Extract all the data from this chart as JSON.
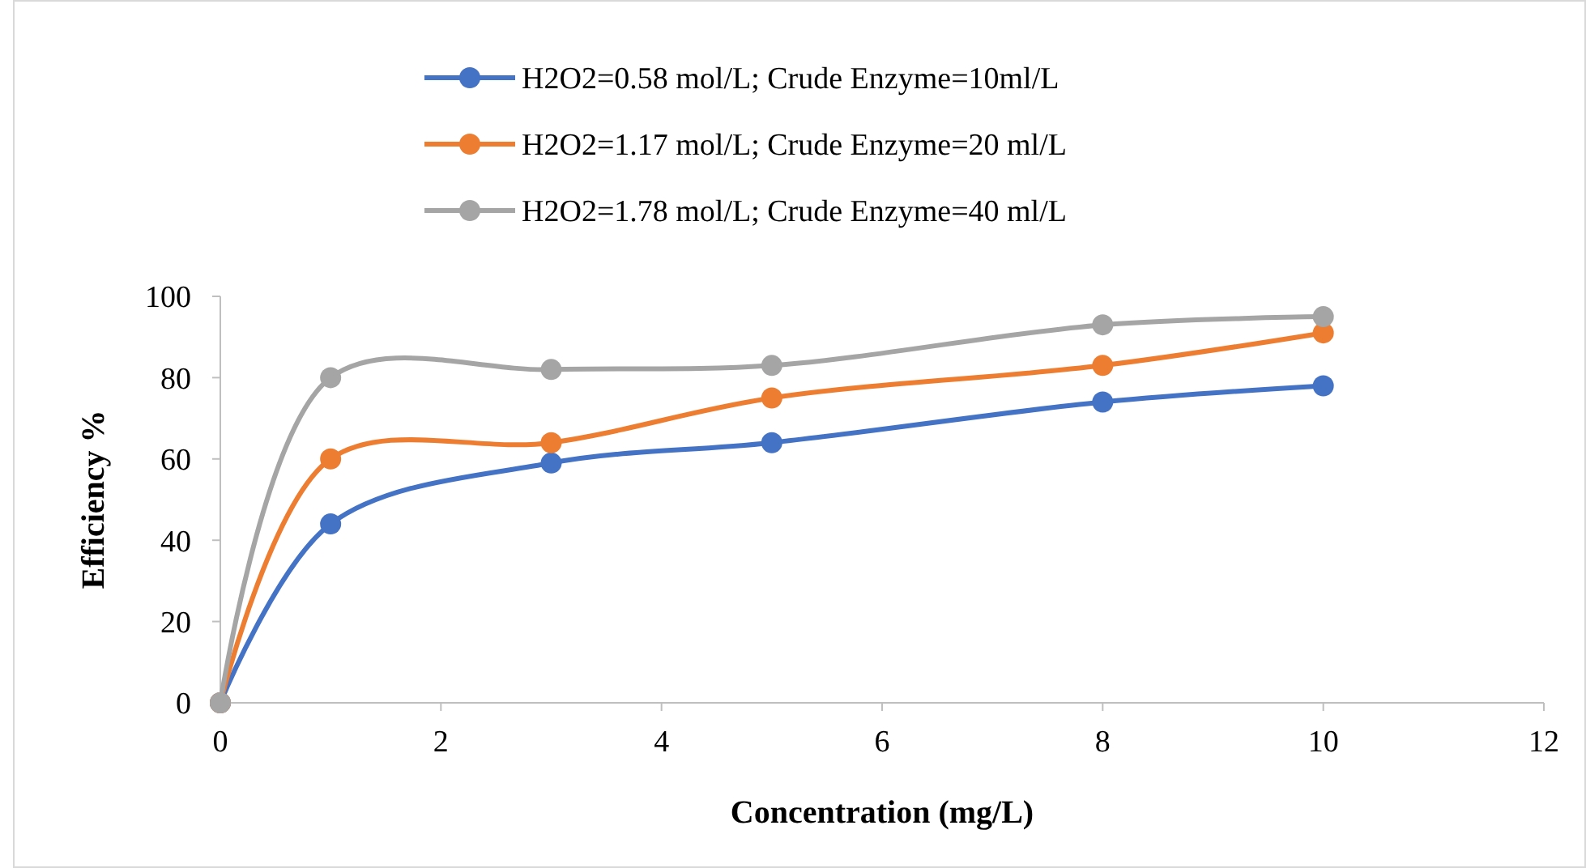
{
  "chart_data": {
    "type": "line",
    "xlabel": "Concentration (mg/L)",
    "ylabel": "Efficiency %",
    "xlim": [
      0,
      12
    ],
    "xticks": [
      0,
      2,
      4,
      6,
      8,
      10,
      12
    ],
    "ylim": [
      0,
      100
    ],
    "yticks": [
      0,
      20,
      40,
      60,
      80,
      100
    ],
    "x": [
      0,
      1,
      3,
      5,
      8,
      10
    ],
    "grid": false,
    "legend": "top",
    "marker": "circle",
    "line_style": "solid",
    "series": [
      {
        "name": "H2O2=0.58 mol/L; Crude Enzyme=10ml/L",
        "color": "#4472c4",
        "values": [
          0,
          44,
          59,
          64,
          74,
          78
        ]
      },
      {
        "name": "H2O2=1.17 mol/L; Crude Enzyme=20 ml/L",
        "color": "#ed7d31",
        "values": [
          0,
          60,
          64,
          75,
          83,
          91
        ]
      },
      {
        "name": "H2O2=1.78 mol/L; Crude Enzyme=40 ml/L",
        "color": "#a5a5a5",
        "values": [
          0,
          80,
          82,
          83,
          93,
          95
        ]
      }
    ]
  }
}
